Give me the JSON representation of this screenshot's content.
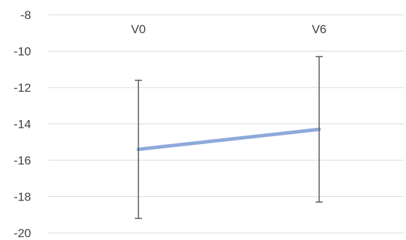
{
  "chart_data": {
    "type": "line",
    "title": "",
    "xlabel": "",
    "ylabel": "",
    "categories": [
      "V0",
      "V6"
    ],
    "series": [
      {
        "values": [
          -15.4,
          -14.3
        ],
        "error_low": [
          -19.2,
          -18.3
        ],
        "error_high": [
          -11.6,
          -10.3
        ],
        "color": "#8EA9DB"
      }
    ],
    "ylim": [
      -20,
      -8
    ],
    "yticks": [
      -8,
      -10,
      -12,
      -14,
      -16,
      -18,
      -20
    ],
    "ytick_labels": [
      "-8",
      "-10",
      "-12",
      "-14",
      "-16",
      "-18",
      "-20"
    ],
    "grid": true,
    "legend": "none",
    "category_labels_position": "top",
    "colors": {
      "line": "#8EA9DB",
      "error_bar": "#595959",
      "grid": "#D9D9D9",
      "text": "#404040"
    }
  }
}
